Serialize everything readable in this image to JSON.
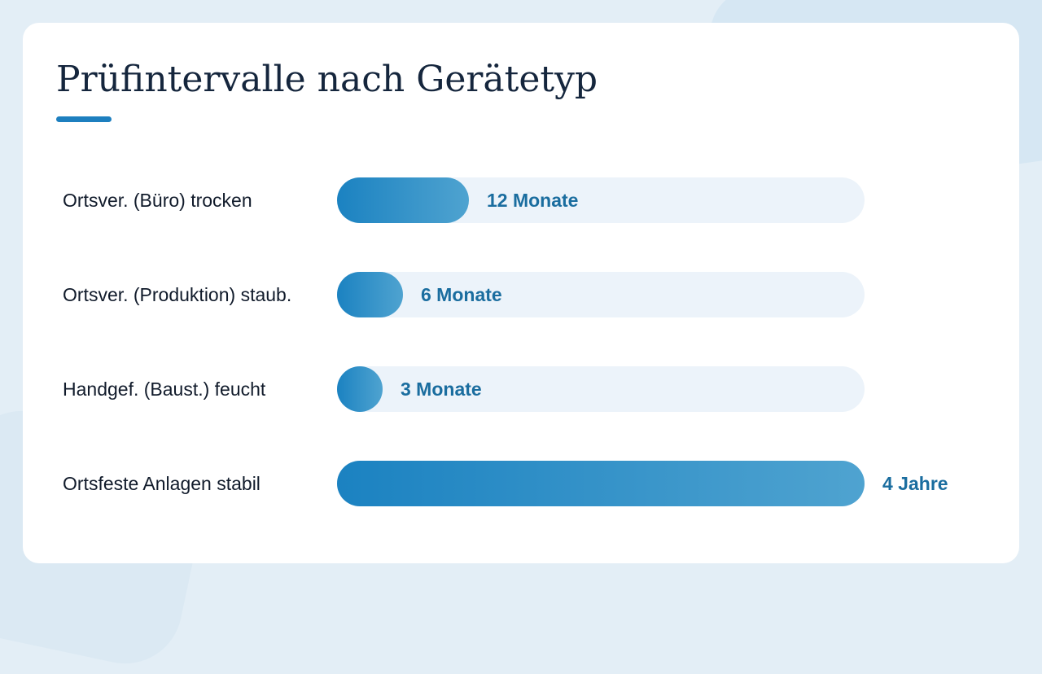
{
  "slide": {
    "title": "Prüfintervalle nach Gerätetyp"
  },
  "colors": {
    "title": "#15263d",
    "accent": "#1d7fbf",
    "bar_start": "#1b82c1",
    "bar_end": "#4fa3d0",
    "track": "#ecf3fa",
    "value_text": "#1a6d9f",
    "label_text": "#111b2b",
    "background": "#e3eef6",
    "card": "#ffffff"
  },
  "chart_data": {
    "type": "bar",
    "orientation": "horizontal",
    "unit": "Monate",
    "xlim": [
      0,
      48
    ],
    "grid": false,
    "categories": [
      "Ortsver. (Büro) trocken",
      "Ortsver. (Produktion) staub.",
      "Handgef. (Baust.) feucht",
      "Ortsfeste Anlagen stabil"
    ],
    "values": [
      12,
      6,
      3,
      48
    ],
    "data_labels": [
      "12 Monate",
      "6 Monate",
      "3 Monate",
      "4 Jahre"
    ]
  }
}
